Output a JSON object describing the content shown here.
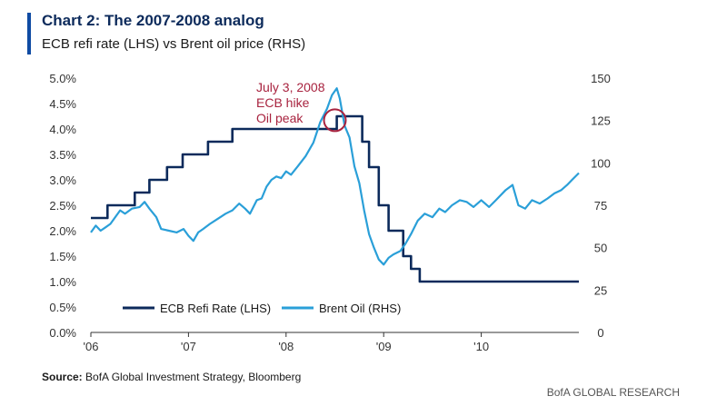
{
  "header": {
    "title": "Chart 2: The 2007-2008 analog",
    "subtitle": "ECB refi rate (LHS) vs Brent oil price (RHS)"
  },
  "footer": {
    "source_label": "Source:",
    "source_text": "BofA Global Investment Strategy, Bloomberg",
    "brand": "BofA GLOBAL RESEARCH"
  },
  "colors": {
    "accent": "#0f4ba3",
    "ecb": "#0c2a5b",
    "brent": "#2a9fd8",
    "annotation": "#a8233f",
    "axis": "#333333"
  },
  "chart_data": {
    "type": "line",
    "title": "Chart 2: The 2007-2008 analog",
    "subtitle": "ECB refi rate (LHS) vs Brent oil price (RHS)",
    "x_ticks": [
      "'06",
      "'07",
      "'08",
      "'09",
      "'10"
    ],
    "x_range": [
      2006.0,
      2011.0
    ],
    "y_left": {
      "ticks": [
        "0.0%",
        "0.5%",
        "1.0%",
        "1.5%",
        "2.0%",
        "2.5%",
        "3.0%",
        "3.5%",
        "4.0%",
        "4.5%",
        "5.0%"
      ],
      "range": [
        0,
        5
      ]
    },
    "y_right": {
      "ticks": [
        "0",
        "25",
        "50",
        "75",
        "100",
        "125",
        "150"
      ],
      "range": [
        0,
        150
      ]
    },
    "grid": false,
    "legend_position": "bottom-left",
    "series": [
      {
        "name": "ECB Refi Rate (LHS)",
        "axis": "left",
        "step": true,
        "points": [
          [
            2006.0,
            2.25
          ],
          [
            2006.17,
            2.5
          ],
          [
            2006.45,
            2.75
          ],
          [
            2006.6,
            3.0
          ],
          [
            2006.78,
            3.25
          ],
          [
            2006.94,
            3.5
          ],
          [
            2007.2,
            3.75
          ],
          [
            2007.45,
            4.0
          ],
          [
            2008.52,
            4.25
          ],
          [
            2008.78,
            3.75
          ],
          [
            2008.85,
            3.25
          ],
          [
            2008.95,
            2.5
          ],
          [
            2009.05,
            2.0
          ],
          [
            2009.2,
            1.5
          ],
          [
            2009.28,
            1.25
          ],
          [
            2009.37,
            1.0
          ],
          [
            2011.0,
            1.0
          ]
        ]
      },
      {
        "name": "Brent Oil (RHS)",
        "axis": "right",
        "points": [
          [
            2006.0,
            59
          ],
          [
            2006.05,
            63
          ],
          [
            2006.1,
            60
          ],
          [
            2006.15,
            62
          ],
          [
            2006.2,
            64
          ],
          [
            2006.25,
            68
          ],
          [
            2006.3,
            72
          ],
          [
            2006.35,
            70
          ],
          [
            2006.42,
            73
          ],
          [
            2006.5,
            74
          ],
          [
            2006.55,
            77
          ],
          [
            2006.6,
            73
          ],
          [
            2006.67,
            68
          ],
          [
            2006.72,
            61
          ],
          [
            2006.8,
            60
          ],
          [
            2006.88,
            59
          ],
          [
            2006.95,
            61
          ],
          [
            2007.0,
            57
          ],
          [
            2007.05,
            54
          ],
          [
            2007.1,
            59
          ],
          [
            2007.15,
            61
          ],
          [
            2007.22,
            64
          ],
          [
            2007.3,
            67
          ],
          [
            2007.38,
            70
          ],
          [
            2007.45,
            72
          ],
          [
            2007.52,
            76
          ],
          [
            2007.58,
            73
          ],
          [
            2007.63,
            70
          ],
          [
            2007.7,
            78
          ],
          [
            2007.75,
            79
          ],
          [
            2007.8,
            86
          ],
          [
            2007.85,
            90
          ],
          [
            2007.9,
            92
          ],
          [
            2007.95,
            91
          ],
          [
            2008.0,
            95
          ],
          [
            2008.05,
            93
          ],
          [
            2008.12,
            98
          ],
          [
            2008.2,
            104
          ],
          [
            2008.28,
            112
          ],
          [
            2008.35,
            124
          ],
          [
            2008.42,
            132
          ],
          [
            2008.47,
            140
          ],
          [
            2008.52,
            144
          ],
          [
            2008.55,
            138
          ],
          [
            2008.6,
            122
          ],
          [
            2008.65,
            115
          ],
          [
            2008.7,
            98
          ],
          [
            2008.75,
            88
          ],
          [
            2008.8,
            72
          ],
          [
            2008.85,
            58
          ],
          [
            2008.9,
            50
          ],
          [
            2008.95,
            43
          ],
          [
            2009.0,
            40
          ],
          [
            2009.05,
            44
          ],
          [
            2009.1,
            46
          ],
          [
            2009.17,
            48
          ],
          [
            2009.22,
            52
          ],
          [
            2009.28,
            58
          ],
          [
            2009.35,
            66
          ],
          [
            2009.42,
            70
          ],
          [
            2009.5,
            68
          ],
          [
            2009.57,
            73
          ],
          [
            2009.63,
            71
          ],
          [
            2009.7,
            75
          ],
          [
            2009.78,
            78
          ],
          [
            2009.85,
            77
          ],
          [
            2009.92,
            74
          ],
          [
            2010.0,
            78
          ],
          [
            2010.08,
            74
          ],
          [
            2010.15,
            78
          ],
          [
            2010.25,
            84
          ],
          [
            2010.32,
            87
          ],
          [
            2010.38,
            75
          ],
          [
            2010.45,
            73
          ],
          [
            2010.52,
            78
          ],
          [
            2010.6,
            76
          ],
          [
            2010.68,
            79
          ],
          [
            2010.75,
            82
          ],
          [
            2010.82,
            84
          ],
          [
            2010.88,
            87
          ],
          [
            2010.93,
            90
          ],
          [
            2011.0,
            94
          ]
        ]
      }
    ],
    "annotation": {
      "lines": [
        "July 3, 2008",
        "ECB hike",
        "Oil peak"
      ],
      "x": 2008.5,
      "y_left": 4.1
    }
  }
}
